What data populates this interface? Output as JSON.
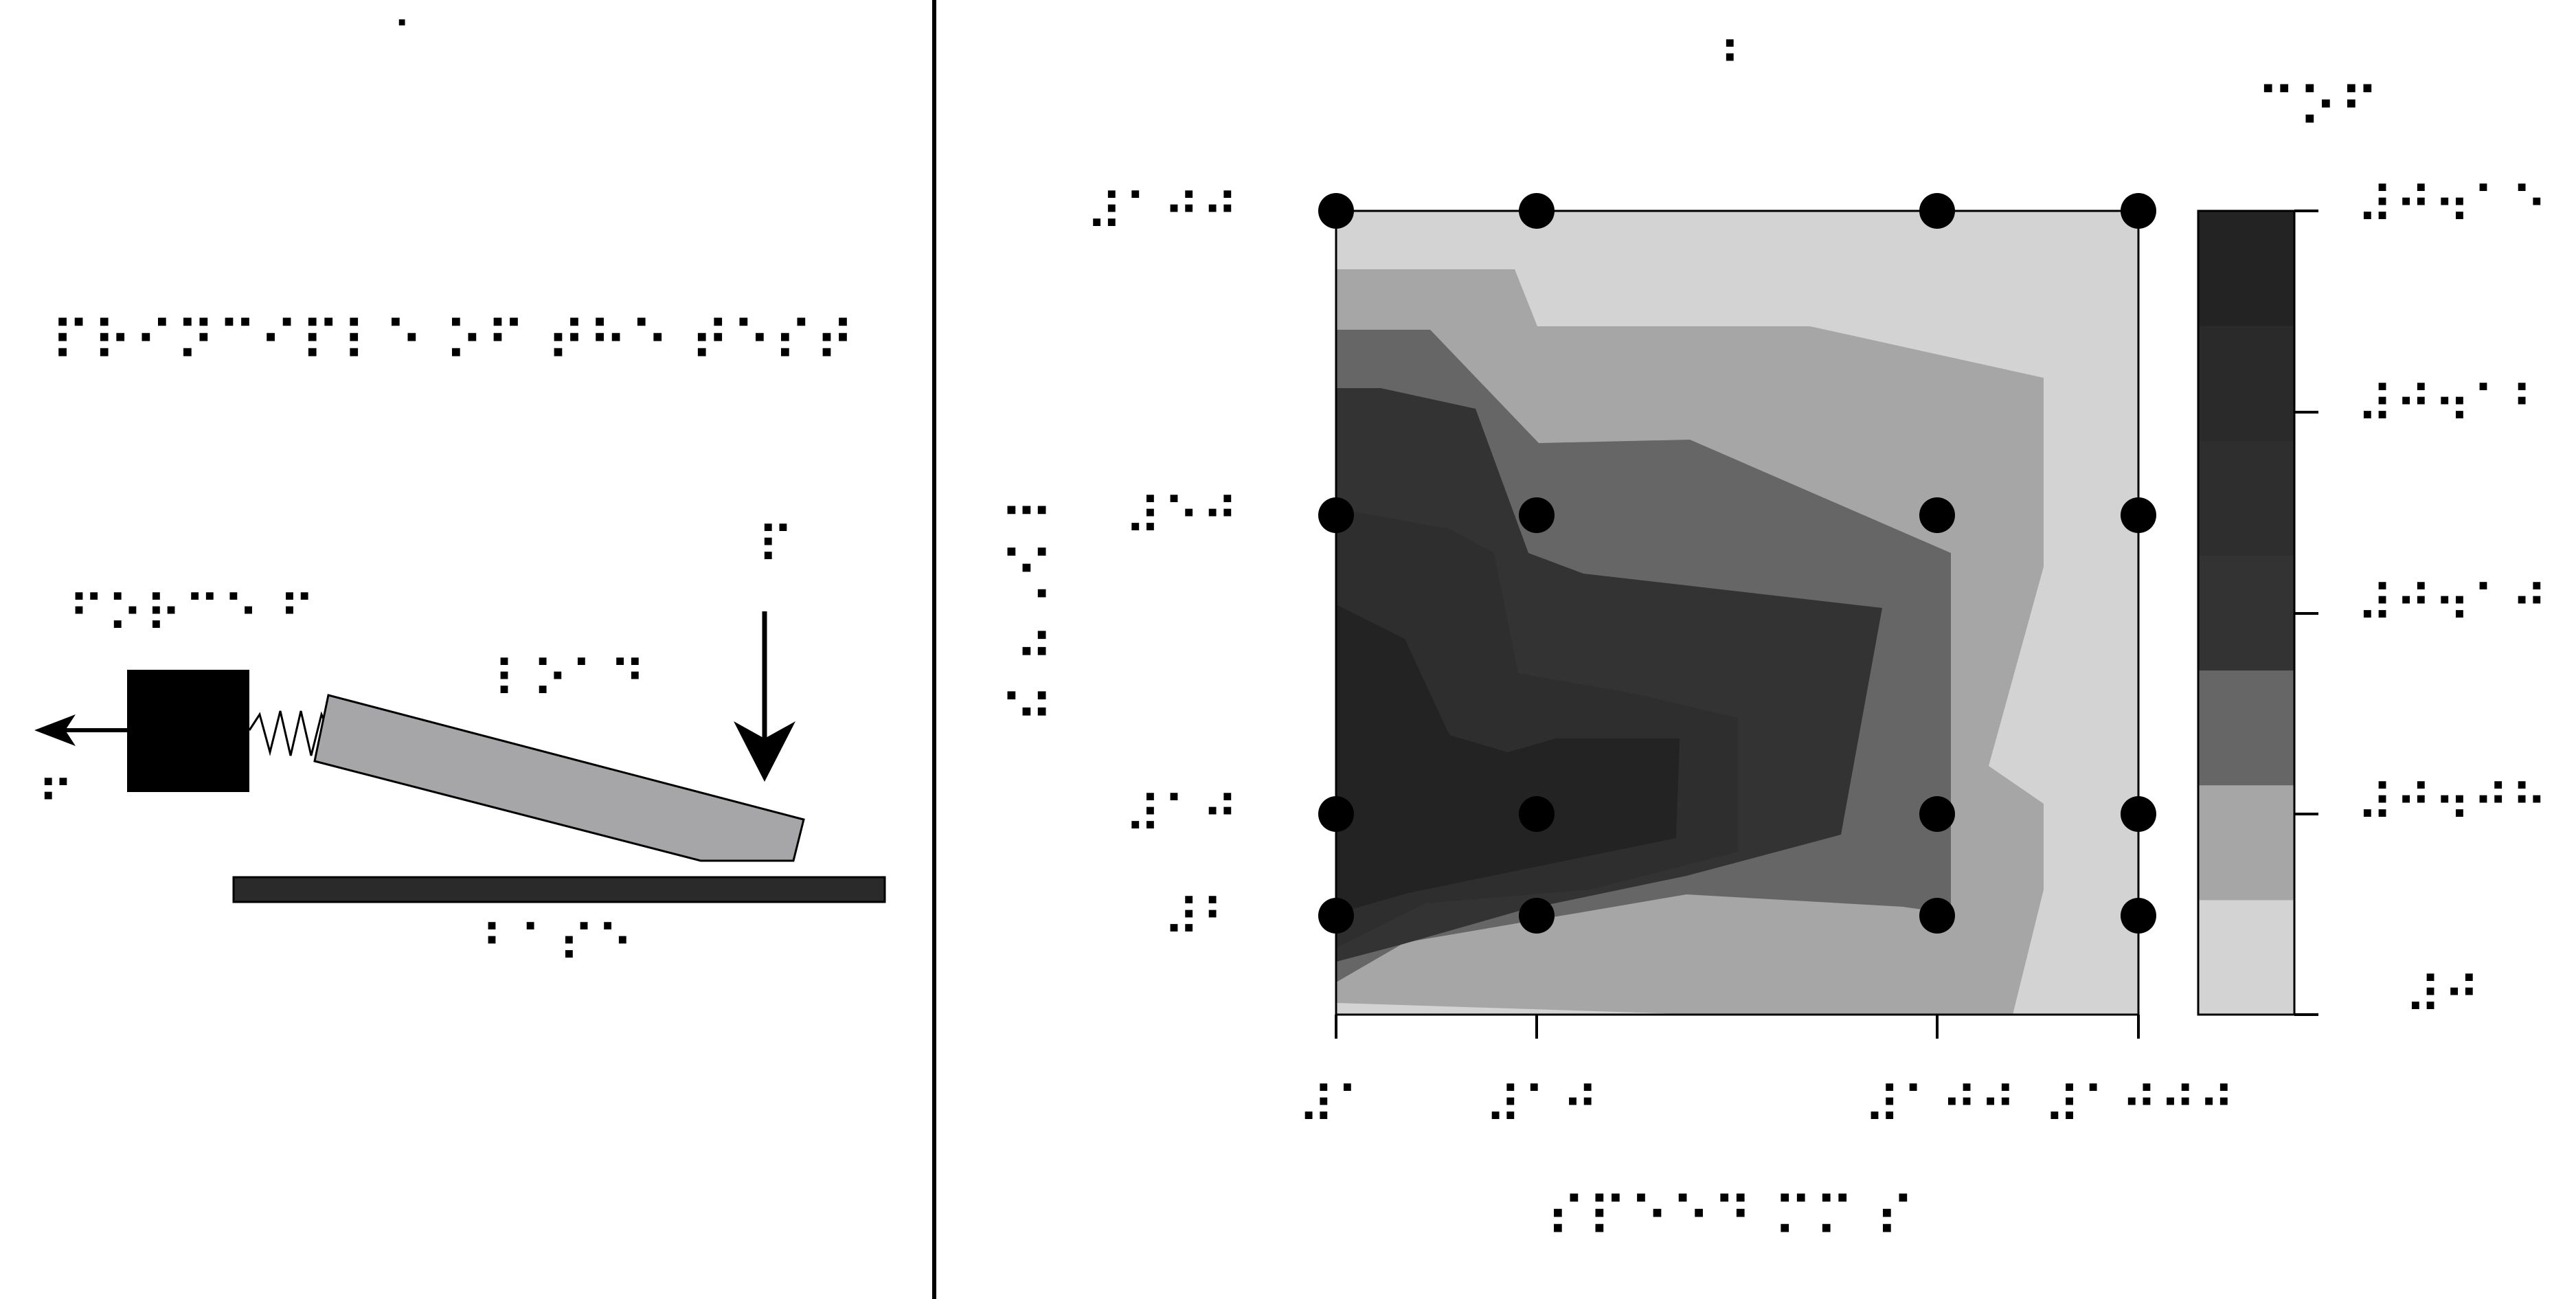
{
  "left_panel": {
    "label_a": "⠁",
    "title": "⠏⠗⠊⠝⠉⠊⠏⠇⠑ ⠕⠋ ⠞⠓⠑ ⠞⠑⠎⠞",
    "label_force": "⠋⠕⠗⠉⠑ ⠋",
    "label_f": "⠋",
    "label_load": "⠇⠕⠁⠙",
    "label_p": "⠏",
    "label_base": "⠃⠁⠎⠑"
  },
  "right_panel": {
    "label_b": "⠃",
    "colorbar_title": "⠉⠕⠋",
    "ylabel": "⠇⠕⠁⠙ ⠝",
    "xlabel": "⠎⠏⠑⠑⠙ ⠍⠍ ⠎"
  },
  "chart_data": {
    "type": "heatmap",
    "title": "",
    "x_ticks": [
      "⠼⠁",
      "⠼⠁⠚",
      "⠼⠁⠚⠚",
      "⠼⠁⠚⠚⠚"
    ],
    "y_ticks": [
      "⠼⠃",
      "⠼⠁⠚",
      "⠼⠑⠚",
      "⠼⠁⠚⠚"
    ],
    "colorbar_ticks": [
      "⠼⠚⠲⠁⠑",
      "⠼⠚⠲⠁⠃",
      "⠼⠚⠲⠁⠚",
      "⠼⠚⠲⠚⠓",
      "⠼⠚"
    ],
    "levels": [
      0.0,
      0.03,
      0.06,
      0.09,
      0.12,
      0.15
    ],
    "colors": [
      "#d3d3d3",
      "#a6a6a6",
      "#666666",
      "#333333",
      "#2e2e2e",
      "#232323"
    ],
    "grid_x": [
      1,
      10,
      100,
      1000
    ],
    "grid_y": [
      2,
      10,
      50,
      100
    ],
    "x_scale": "log",
    "y_scale": "log",
    "measurement_points": [
      [
        1,
        100
      ],
      [
        10,
        100
      ],
      [
        100,
        100
      ],
      [
        1000,
        100
      ],
      [
        1,
        50
      ],
      [
        10,
        50
      ],
      [
        100,
        50
      ],
      [
        1000,
        50
      ],
      [
        1,
        10
      ],
      [
        10,
        10
      ],
      [
        100,
        10
      ],
      [
        1000,
        10
      ],
      [
        1,
        2
      ],
      [
        10,
        2
      ],
      [
        100,
        2
      ],
      [
        1000,
        2
      ]
    ],
    "legend": "right"
  }
}
